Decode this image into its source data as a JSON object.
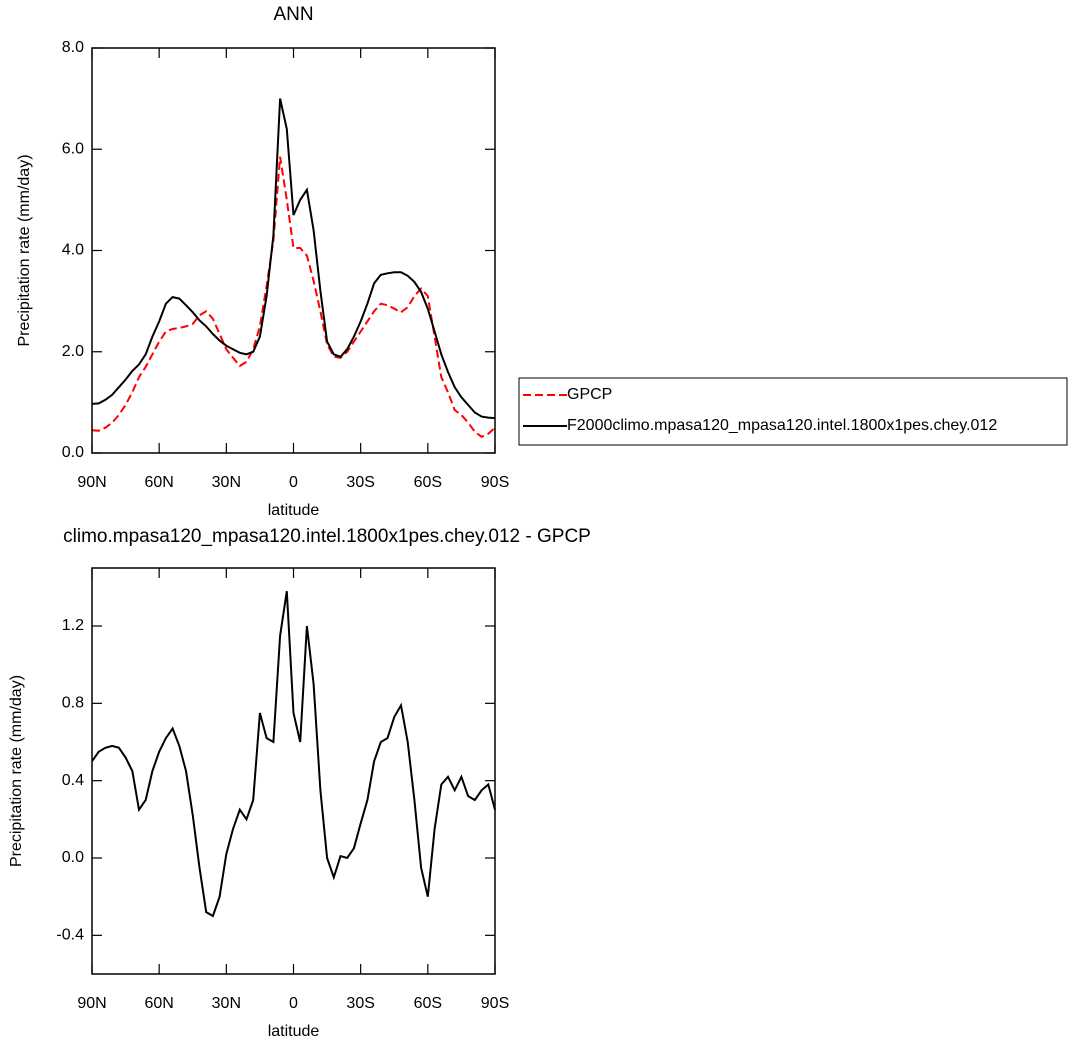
{
  "chart_data": [
    {
      "type": "line",
      "title": "ANN",
      "xlabel": "latitude",
      "ylabel": "Precipitation rate (mm/day)",
      "x": [
        90,
        87,
        84,
        81,
        78,
        75,
        72,
        69,
        66,
        63,
        60,
        57,
        54,
        51,
        48,
        45,
        42,
        39,
        36,
        33,
        30,
        27,
        24,
        21,
        18,
        15,
        12,
        9,
        6,
        3,
        0,
        -3,
        -6,
        -9,
        -12,
        -15,
        -18,
        -21,
        -24,
        -27,
        -30,
        -33,
        -36,
        -39,
        -42,
        -45,
        -48,
        -51,
        -54,
        -57,
        -60,
        -63,
        -66,
        -69,
        -72,
        -75,
        -78,
        -81,
        -84,
        -87,
        -90
      ],
      "xlim": [
        90,
        -90
      ],
      "xticks": [
        {
          "value": 90,
          "label": "90N"
        },
        {
          "value": 60,
          "label": "60N"
        },
        {
          "value": 30,
          "label": "30N"
        },
        0,
        {
          "value": -30,
          "label": "30S"
        },
        {
          "value": -60,
          "label": "60S"
        },
        {
          "value": -90,
          "label": "90S"
        }
      ],
      "ylim": [
        0,
        8
      ],
      "yticks": [
        {
          "value": 0,
          "label": "0.0"
        },
        {
          "value": 2,
          "label": "2.0"
        },
        {
          "value": 4,
          "label": "4.0"
        },
        {
          "value": 6,
          "label": "6.0"
        },
        {
          "value": 8,
          "label": "8.0"
        }
      ],
      "series": [
        {
          "name": "GPCP",
          "color": "#ff0000",
          "line_style": "dashed",
          "values": [
            0.45,
            0.44,
            0.5,
            0.6,
            0.75,
            0.95,
            1.2,
            1.5,
            1.7,
            1.95,
            2.2,
            2.4,
            2.45,
            2.47,
            2.5,
            2.55,
            2.72,
            2.8,
            2.65,
            2.35,
            2.05,
            1.88,
            1.72,
            1.8,
            2.05,
            2.5,
            3.3,
            4.2,
            5.85,
            5.0,
            4.05,
            4.05,
            3.9,
            3.4,
            2.8,
            2.15,
            1.9,
            1.88,
            2.0,
            2.2,
            2.4,
            2.6,
            2.8,
            2.95,
            2.92,
            2.85,
            2.78,
            2.88,
            3.1,
            3.25,
            3.1,
            2.3,
            1.5,
            1.2,
            0.85,
            0.75,
            0.6,
            0.42,
            0.32,
            0.38,
            0.5
          ]
        },
        {
          "name": "F2000climo.mpasa120_mpasa120.intel.1800x1pes.chey.012",
          "color": "#000000",
          "line_style": "solid",
          "values": [
            0.97,
            0.98,
            1.05,
            1.15,
            1.3,
            1.45,
            1.62,
            1.75,
            1.95,
            2.3,
            2.6,
            2.95,
            3.08,
            3.05,
            2.92,
            2.78,
            2.62,
            2.5,
            2.35,
            2.22,
            2.12,
            2.05,
            1.98,
            1.95,
            2.0,
            2.3,
            3.1,
            4.3,
            7.0,
            6.4,
            4.7,
            5.0,
            5.2,
            4.4,
            3.2,
            2.2,
            1.95,
            1.9,
            2.05,
            2.3,
            2.6,
            2.95,
            3.35,
            3.52,
            3.55,
            3.57,
            3.57,
            3.5,
            3.38,
            3.18,
            2.85,
            2.4,
            1.95,
            1.6,
            1.3,
            1.1,
            0.95,
            0.8,
            0.72,
            0.7,
            0.69
          ]
        }
      ]
    },
    {
      "type": "line",
      "title": "climo.mpasa120_mpasa120.intel.1800x1pes.chey.012 - GPCP",
      "xlabel": "latitude",
      "ylabel": "Precipitation rate (mm/day)",
      "x": [
        90,
        87,
        84,
        81,
        78,
        75,
        72,
        69,
        66,
        63,
        60,
        57,
        54,
        51,
        48,
        45,
        42,
        39,
        36,
        33,
        30,
        27,
        24,
        21,
        18,
        15,
        12,
        9,
        6,
        3,
        0,
        -3,
        -6,
        -9,
        -12,
        -15,
        -18,
        -21,
        -24,
        -27,
        -30,
        -33,
        -36,
        -39,
        -42,
        -45,
        -48,
        -51,
        -54,
        -57,
        -60,
        -63,
        -66,
        -69,
        -72,
        -75,
        -78,
        -81,
        -84,
        -87,
        -90
      ],
      "xlim": [
        90,
        -90
      ],
      "xticks": [
        {
          "value": 90,
          "label": "90N"
        },
        {
          "value": 60,
          "label": "60N"
        },
        {
          "value": 30,
          "label": "30N"
        },
        0,
        {
          "value": -30,
          "label": "30S"
        },
        {
          "value": -60,
          "label": "60S"
        },
        {
          "value": -90,
          "label": "90S"
        }
      ],
      "ylim": [
        -0.6,
        1.5
      ],
      "yticks": [
        -0.4,
        {
          "value": 0,
          "label": "0.0"
        },
        0.4,
        0.8,
        1.2
      ],
      "series": [
        {
          "color": "#000000",
          "line_style": "solid",
          "values": [
            0.5,
            0.55,
            0.57,
            0.58,
            0.57,
            0.52,
            0.45,
            0.25,
            0.3,
            0.45,
            0.55,
            0.62,
            0.67,
            0.58,
            0.45,
            0.22,
            -0.05,
            -0.28,
            -0.3,
            -0.2,
            0.02,
            0.15,
            0.25,
            0.2,
            0.3,
            0.75,
            0.62,
            0.6,
            1.15,
            1.38,
            0.75,
            0.6,
            1.2,
            0.9,
            0.35,
            0.0,
            -0.1,
            0.01,
            0.0,
            0.05,
            0.18,
            0.3,
            0.5,
            0.6,
            0.62,
            0.73,
            0.79,
            0.6,
            0.3,
            -0.05,
            -0.2,
            0.15,
            0.38,
            0.42,
            0.35,
            0.42,
            0.32,
            0.3,
            0.35,
            0.38,
            0.25
          ]
        }
      ]
    }
  ]
}
